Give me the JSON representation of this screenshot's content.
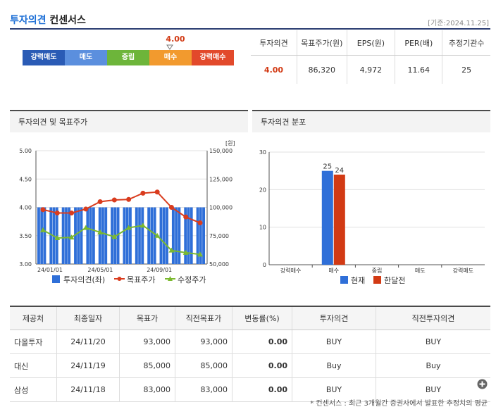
{
  "header": {
    "title_a": "투자의견",
    "title_b": "컨센서스",
    "date": "[기준:2024.11.25]"
  },
  "scale": {
    "current_value": "4.00",
    "marker_icon": "triangle-down",
    "segments": [
      {
        "label": "강력매도",
        "color": "#2a5bb5"
      },
      {
        "label": "매도",
        "color": "#5b8fde"
      },
      {
        "label": "중립",
        "color": "#6db53a"
      },
      {
        "label": "매수",
        "color": "#f29a2e"
      },
      {
        "label": "강력매수",
        "color": "#e2492b"
      }
    ]
  },
  "summary": {
    "headers": [
      "투자의견",
      "목표주가(원)",
      "EPS(원)",
      "PER(배)",
      "추정기관수"
    ],
    "values": [
      "4.00",
      "86,320",
      "4,972",
      "11.64",
      "25"
    ]
  },
  "left_panel": {
    "title": "투자의견 및 목표주가",
    "unit": "[원]"
  },
  "right_panel": {
    "title": "투자의견 분포"
  },
  "charts": {
    "opinion": {
      "y_left_ticks": [
        "5.00",
        "4.50",
        "4.00",
        "3.50",
        "3.00"
      ],
      "y_right_ticks": [
        "150,000",
        "125,000",
        "100,000",
        "75,000",
        "50,000"
      ],
      "x_ticks": [
        "24/01/01",
        "24/05/01",
        "24/09/01"
      ],
      "legend": [
        "투자의견(좌)",
        "목표주가",
        "수정주가"
      ]
    },
    "distribution": {
      "y_ticks": [
        "30",
        "20",
        "10",
        "0"
      ],
      "categories": [
        "강력매수",
        "매수",
        "중립",
        "매도",
        "강력매도"
      ],
      "legend": [
        "현재",
        "한달전"
      ]
    }
  },
  "chart_data": [
    {
      "type": "bar",
      "series": [
        {
          "name": "투자의견(좌)",
          "type": "bar",
          "axis": "left",
          "color": "#2f6fd8",
          "values": [
            4.0,
            4.0,
            4.0,
            4.0,
            4.0,
            4.0,
            4.0,
            4.0,
            4.0,
            4.0,
            4.0,
            4.0,
            4.0,
            4.0
          ]
        },
        {
          "name": "목표주가",
          "type": "line",
          "axis": "right",
          "color": "#d93c1e",
          "values": [
            98000,
            95000,
            95000,
            98500,
            105000,
            106500,
            107000,
            112500,
            113500,
            100000,
            91500,
            86320
          ]
        },
        {
          "name": "수정주가",
          "type": "line",
          "axis": "right",
          "color": "#7bb92f",
          "values": [
            80000,
            73000,
            73500,
            82000,
            78000,
            74000,
            82000,
            84000,
            75000,
            62000,
            60000,
            58500
          ]
        }
      ],
      "x_labels": [
        "24/01/01",
        "24/05/01",
        "24/09/01"
      ],
      "ylim_left": [
        3.0,
        5.0
      ],
      "ylim_right": [
        50000,
        150000
      ],
      "ylabel_right": "[원]",
      "grid": true,
      "legend": "bottom"
    },
    {
      "type": "bar",
      "categories": [
        "강력매수",
        "매수",
        "중립",
        "매도",
        "강력매도"
      ],
      "series": [
        {
          "name": "현재",
          "color": "#2f6fd8",
          "values": [
            0,
            25,
            0,
            0,
            0
          ]
        },
        {
          "name": "한달전",
          "color": "#d23a14",
          "values": [
            0,
            24,
            0,
            0,
            0
          ]
        }
      ],
      "ylim": [
        0,
        30
      ],
      "grid": true,
      "legend": "bottom"
    }
  ],
  "table": {
    "headers": [
      "제공처",
      "최종일자",
      "목표가",
      "직전목표가",
      "변동률(%)",
      "투자의견",
      "직전투자의견"
    ],
    "rows": [
      [
        "다올투자",
        "24/11/20",
        "93,000",
        "93,000",
        "0.00",
        "BUY",
        "BUY"
      ],
      [
        "대신",
        "24/11/19",
        "85,000",
        "85,000",
        "0.00",
        "Buy",
        "Buy"
      ],
      [
        "삼성",
        "24/11/18",
        "83,000",
        "83,000",
        "0.00",
        "BUY",
        "BUY"
      ]
    ]
  },
  "more_icon": "plus-circle-icon",
  "footnote": "* 컨센서스 : 최근 3개월간 증권사에서 발표한 추정치의 평균"
}
